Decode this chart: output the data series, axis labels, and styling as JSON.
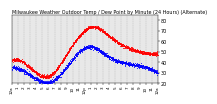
{
  "title": "Milwaukee Weather Outdoor Temp / Dew Point by Minute (24 Hours) (Alternate)",
  "title_fontsize": 3.5,
  "temp_color": "#ff0000",
  "dew_color": "#0000ff",
  "background_color": "#ffffff",
  "plot_bg_color": "#e8e8e8",
  "ylim": [
    20,
    85
  ],
  "xlim": [
    0,
    1440
  ],
  "ytick_fontsize": 3.5,
  "xtick_fontsize": 3.0,
  "yticks": [
    20,
    30,
    40,
    50,
    60,
    70,
    80
  ],
  "xtick_labels": [
    "12a",
    "1",
    "2",
    "3",
    "4",
    "5",
    "6",
    "7",
    "8",
    "9",
    "10",
    "11",
    "12p",
    "1",
    "2",
    "3",
    "4",
    "5",
    "6",
    "7",
    "8",
    "9",
    "10",
    "11",
    "12a"
  ],
  "grid_color": "#999999",
  "marker_size": 0.35,
  "temp_start": 42,
  "temp_min": 27,
  "temp_min_time": 360,
  "temp_peak": 74,
  "temp_peak_time": 810,
  "temp_end": 48,
  "dew_start": 35,
  "dew_min": 22,
  "dew_min_time": 390,
  "dew_peak": 55,
  "dew_peak_time": 750,
  "dew_end": 30
}
